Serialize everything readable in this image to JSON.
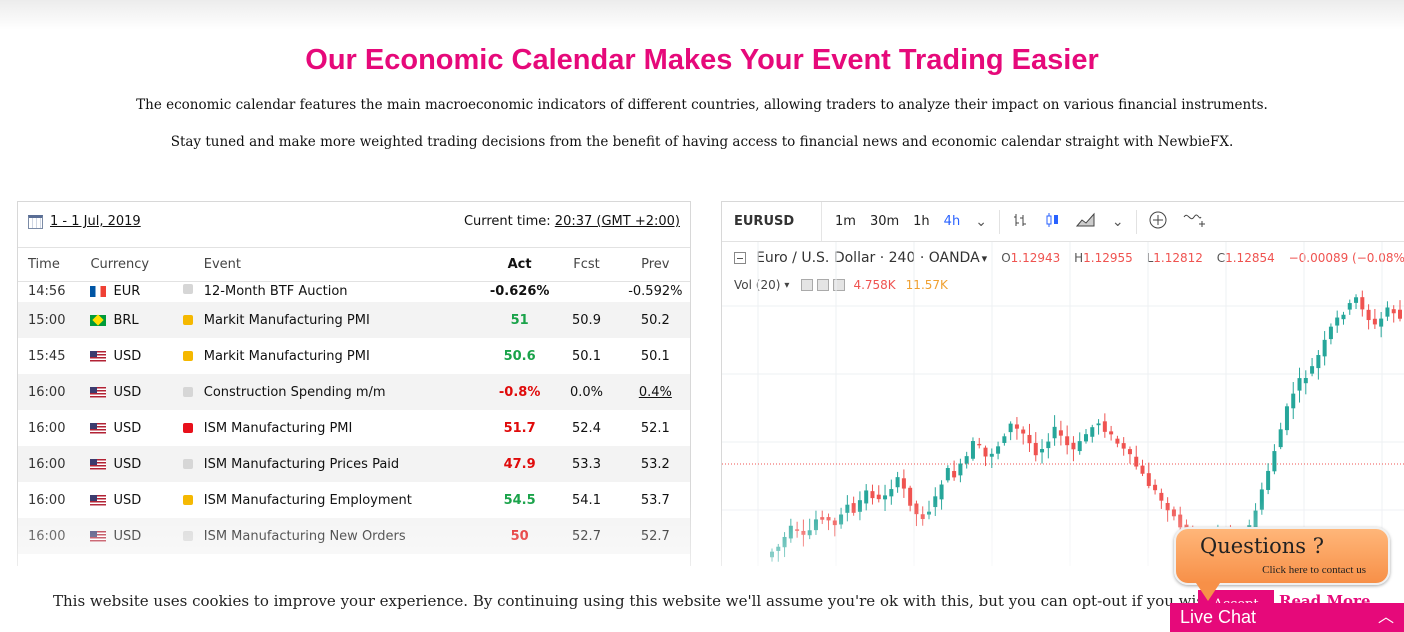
{
  "hero": {
    "title": "Our Economic Calendar Makes Your Event Trading Easier",
    "p1": "The economic calendar features the main macroeconomic indicators of different countries, allowing traders to analyze their impact on various financial instruments.",
    "p2": "Stay tuned and make more weighted trading decisions from the benefit of having access to financial news and economic calendar straight with NewbieFX."
  },
  "calendar": {
    "date_range": "1 - 1 Jul, 2019",
    "current_time_label": "Current time:",
    "current_time_value": "20:37 (GMT +2:00)",
    "columns": {
      "time": "Time",
      "currency": "Currency",
      "event": "Event",
      "act": "Act",
      "fcst": "Fcst",
      "prev": "Prev"
    },
    "rows": [
      {
        "time": "14:56",
        "flag": "fr",
        "currency": "EUR",
        "importance": "#d6d6d6",
        "event": "12-Month BTF Auction",
        "act": "-0.626%",
        "act_color": "#111111",
        "fcst": "",
        "prev": "-0.592%"
      },
      {
        "time": "15:00",
        "flag": "br",
        "currency": "BRL",
        "importance": "#f5b800",
        "event": "Markit Manufacturing PMI",
        "act": "51",
        "act_color": "#1aa34a",
        "fcst": "50.9",
        "prev": "50.2"
      },
      {
        "time": "15:45",
        "flag": "us",
        "currency": "USD",
        "importance": "#f5b800",
        "event": "Markit Manufacturing PMI",
        "act": "50.6",
        "act_color": "#1aa34a",
        "fcst": "50.1",
        "prev": "50.1"
      },
      {
        "time": "16:00",
        "flag": "us",
        "currency": "USD",
        "importance": "#d6d6d6",
        "event": "Construction Spending m/m",
        "act": "-0.8%",
        "act_color": "#e00b0b",
        "fcst": "0.0%",
        "prev": "0.4%"
      },
      {
        "time": "16:00",
        "flag": "us",
        "currency": "USD",
        "importance": "#e8101b",
        "event": "ISM Manufacturing PMI",
        "act": "51.7",
        "act_color": "#e00b0b",
        "fcst": "52.4",
        "prev": "52.1"
      },
      {
        "time": "16:00",
        "flag": "us",
        "currency": "USD",
        "importance": "#d6d6d6",
        "event": "ISM Manufacturing Prices Paid",
        "act": "47.9",
        "act_color": "#e00b0b",
        "fcst": "53.3",
        "prev": "53.2"
      },
      {
        "time": "16:00",
        "flag": "us",
        "currency": "USD",
        "importance": "#f5b800",
        "event": "ISM Manufacturing Employment",
        "act": "54.5",
        "act_color": "#1aa34a",
        "fcst": "54.1",
        "prev": "53.7"
      },
      {
        "time": "16:00",
        "flag": "us",
        "currency": "USD",
        "importance": "#d6d6d6",
        "event": "ISM Manufacturing New Orders",
        "act": "50",
        "act_color": "#e00b0b",
        "fcst": "52.7",
        "prev": "52.7"
      }
    ]
  },
  "chart": {
    "symbol": "EURUSD",
    "timeframes": [
      "1m",
      "30m",
      "1h",
      "4h"
    ],
    "active_timeframe": "4h",
    "title": "Euro / U.S. Dollar · 240 · OANDA",
    "ohlc": {
      "o": "1.12943",
      "h": "1.12955",
      "l": "1.12812",
      "c": "1.12854",
      "change": "−0.00089 (−0.08%)"
    },
    "volume_label": "Vol (20)",
    "vol1": "4.758K",
    "vol2": "11.57K",
    "up_color": "#26a69a",
    "down_color": "#ef5350"
  },
  "chart_data": {
    "type": "candlestick",
    "series": [
      {
        "name": "EURUSD",
        "values": [
          18,
          22,
          30,
          38,
          34,
          30,
          36,
          46,
          48,
          44,
          40,
          52,
          58,
          50,
          62,
          70,
          66,
          62,
          68,
          74,
          80,
          72,
          60,
          50,
          48,
          54,
          64,
          78,
          88,
          84,
          92,
          100,
          112,
          108,
          100,
          104,
          110,
          120,
          128,
          124,
          120,
          112,
          104,
          108,
          116,
          124,
          118,
          110,
          106,
          112,
          120,
          126,
          130,
          124,
          118,
          112,
          106,
          100,
          92,
          84,
          76,
          70,
          62,
          56,
          48,
          40,
          34,
          28,
          22,
          24,
          30,
          36,
          32,
          26,
          22,
          28,
          40,
          54,
          70,
          88,
          106,
          124,
          142,
          156,
          166,
          170,
          178,
          188,
          200,
          212,
          220,
          226,
          232,
          238,
          230,
          220,
          214,
          220,
          230,
          226,
          220,
          214,
          212,
          208,
          204
        ]
      }
    ]
  },
  "cookie": {
    "text": "This website uses cookies to improve your experience. By continuing using this website we'll assume you're ok with this, but you can opt-out if you wish.",
    "accept": "Accept",
    "read_more": "Read More"
  },
  "widget": {
    "questions": "Questions ?",
    "sub": "Click here to contact us",
    "live_chat": "Live Chat"
  }
}
